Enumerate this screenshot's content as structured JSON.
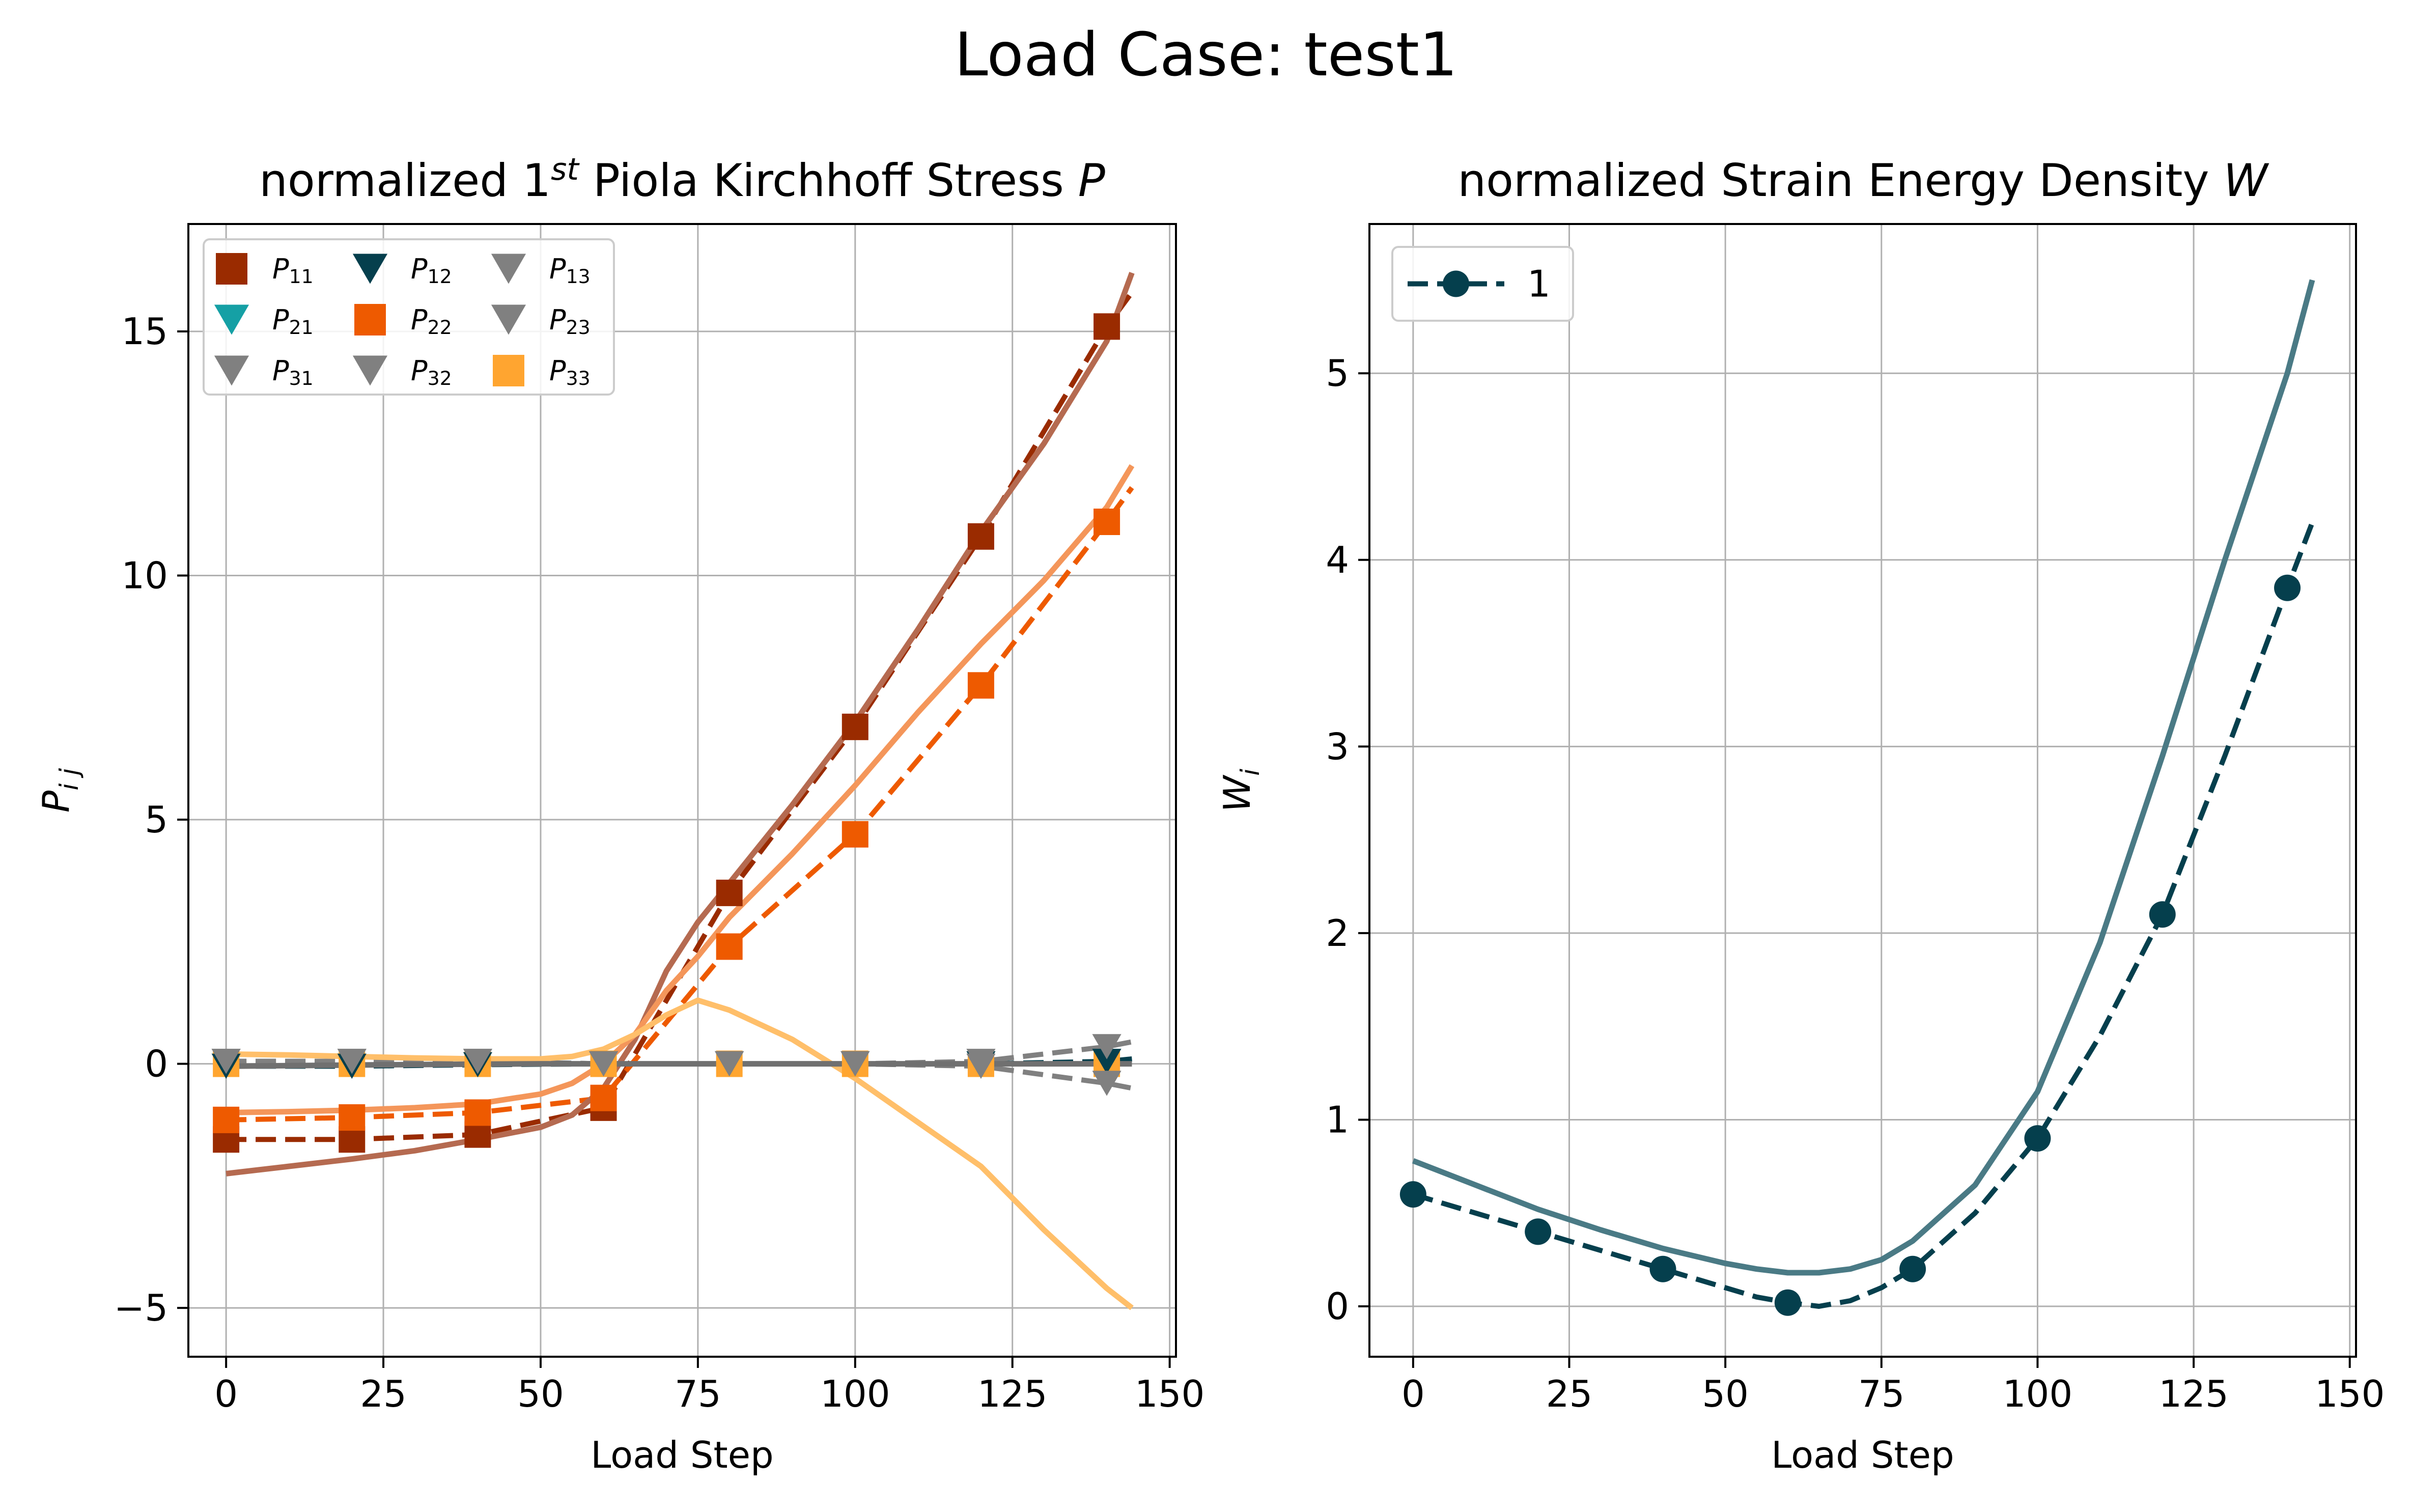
{
  "figure": {
    "suptitle": "Load Case: test1"
  },
  "chart_data": [
    {
      "type": "line",
      "title": "normalized 1st Piola Kirchhoff Stress P",
      "title_parts": {
        "pre": "normalized 1",
        "sup": "st",
        "mid": " Piola Kirchhoff Stress ",
        "ital": "P"
      },
      "xlabel": "Load Step",
      "ylabel": "P_ij",
      "ylabel_parts": {
        "base": "P",
        "sub": "i j"
      },
      "xlim": [
        -6,
        151
      ],
      "ylim": [
        -6.0,
        17.2
      ],
      "xticks": [
        0,
        25,
        50,
        75,
        100,
        125,
        150
      ],
      "yticks": [
        -5,
        0,
        5,
        10,
        15
      ],
      "xtick_labels": [
        "0",
        "25",
        "50",
        "75",
        "100",
        "125",
        "150"
      ],
      "ytick_labels": [
        "−5",
        "0",
        "5",
        "10",
        "15"
      ],
      "grid": true,
      "legend": {
        "placement": "top-left",
        "columns": 3,
        "entries": [
          {
            "base": "P",
            "sub": "11",
            "marker": "square",
            "color": "#9a2b00"
          },
          {
            "base": "P",
            "sub": "12",
            "marker": "triangle-down",
            "color": "#053f4d"
          },
          {
            "base": "P",
            "sub": "13",
            "marker": "triangle-down",
            "color": "#808080"
          },
          {
            "base": "P",
            "sub": "21",
            "marker": "triangle-down",
            "color": "#15a0a5"
          },
          {
            "base": "P",
            "sub": "22",
            "marker": "square",
            "color": "#ee5a00"
          },
          {
            "base": "P",
            "sub": "23",
            "marker": "triangle-down",
            "color": "#808080"
          },
          {
            "base": "P",
            "sub": "31",
            "marker": "triangle-down",
            "color": "#808080"
          },
          {
            "base": "P",
            "sub": "32",
            "marker": "triangle-down",
            "color": "#808080"
          },
          {
            "base": "P",
            "sub": "33",
            "marker": "square",
            "color": "#ffa530"
          }
        ]
      },
      "series": [
        {
          "component": "P11",
          "kind": "data",
          "style": "dashed",
          "marker": "square",
          "color": "#9a2b00",
          "x": [
            0,
            20,
            40,
            60,
            80,
            100,
            120,
            140,
            144
          ],
          "y": [
            -1.55,
            -1.55,
            -1.45,
            -0.9,
            3.5,
            6.9,
            10.8,
            15.1,
            15.8
          ],
          "marker_x": [
            0,
            20,
            40,
            60,
            80,
            100,
            120,
            140
          ],
          "marker_y": [
            -1.55,
            -1.55,
            -1.45,
            -0.9,
            3.5,
            6.9,
            10.8,
            15.1
          ]
        },
        {
          "component": "P22",
          "kind": "data",
          "style": "dashed",
          "marker": "square",
          "color": "#ee5a00",
          "x": [
            0,
            20,
            40,
            60,
            80,
            100,
            120,
            140,
            144
          ],
          "y": [
            -1.15,
            -1.1,
            -1.0,
            -0.7,
            2.4,
            4.7,
            7.75,
            11.1,
            11.8
          ],
          "marker_x": [
            0,
            20,
            40,
            60,
            80,
            100,
            120,
            140
          ],
          "marker_y": [
            -1.15,
            -1.1,
            -1.0,
            -0.7,
            2.4,
            4.7,
            7.75,
            11.1
          ]
        },
        {
          "component": "P33",
          "kind": "data",
          "style": "dashed",
          "marker": "square",
          "color": "#ffa530",
          "x": [
            0,
            20,
            40,
            60,
            80,
            100,
            120,
            140,
            144
          ],
          "y": [
            0.0,
            0.0,
            0.0,
            0.0,
            0.0,
            0.0,
            0.0,
            0.0,
            0.0
          ],
          "marker_x": [
            0,
            20,
            40,
            60,
            80,
            100,
            120,
            140
          ],
          "marker_y": [
            0.0,
            0.0,
            0.0,
            0.0,
            0.0,
            0.0,
            0.0,
            0.0
          ]
        },
        {
          "component": "P12",
          "kind": "data",
          "style": "dashed",
          "marker": "triangle-down",
          "color": "#053f4d",
          "x": [
            0,
            20,
            40,
            60,
            80,
            100,
            120,
            140,
            144
          ],
          "y": [
            -0.05,
            -0.05,
            -0.02,
            0.0,
            0.0,
            0.0,
            0.0,
            0.05,
            0.1
          ],
          "marker_x": [
            0,
            20,
            40,
            60,
            80,
            100,
            120,
            140
          ],
          "marker_y": [
            -0.05,
            -0.05,
            -0.02,
            0.0,
            0.0,
            0.0,
            0.0,
            0.05
          ]
        },
        {
          "component": "P13",
          "kind": "data",
          "style": "dashed",
          "marker": "triangle-down",
          "color": "#808080",
          "x": [
            0,
            20,
            40,
            60,
            80,
            100,
            120,
            140,
            144
          ],
          "y": [
            0.05,
            0.05,
            0.05,
            0.0,
            0.0,
            0.0,
            0.05,
            0.35,
            0.45
          ],
          "marker_x": [
            0,
            20,
            40,
            60,
            80,
            100,
            120,
            140
          ],
          "marker_y": [
            0.05,
            0.05,
            0.05,
            0.0,
            0.0,
            0.0,
            0.05,
            0.35
          ]
        },
        {
          "component": "P31",
          "kind": "data",
          "style": "dashed",
          "marker": "triangle-down",
          "color": "#808080",
          "x": [
            0,
            20,
            40,
            60,
            80,
            100,
            120,
            140,
            144
          ],
          "y": [
            0.05,
            0.05,
            0.05,
            0.0,
            0.0,
            0.0,
            -0.05,
            -0.4,
            -0.5
          ],
          "marker_x": [
            0,
            20,
            40,
            60,
            80,
            100,
            120,
            140
          ],
          "marker_y": [
            0.05,
            0.05,
            0.05,
            0.0,
            0.0,
            0.0,
            -0.05,
            -0.4
          ]
        },
        {
          "component": "P11",
          "kind": "model",
          "style": "solid",
          "color": "#b56a50",
          "x": [
            0,
            10,
            20,
            30,
            40,
            50,
            55,
            60,
            65,
            70,
            75,
            80,
            90,
            100,
            110,
            120,
            130,
            140,
            144
          ],
          "y": [
            -2.25,
            -2.1,
            -1.95,
            -1.78,
            -1.55,
            -1.3,
            -1.05,
            -0.5,
            0.5,
            1.9,
            2.9,
            3.7,
            5.3,
            7.0,
            8.9,
            10.9,
            12.7,
            14.8,
            16.2
          ]
        },
        {
          "component": "P22",
          "kind": "model",
          "style": "solid",
          "color": "#f4965a",
          "x": [
            0,
            10,
            20,
            30,
            40,
            50,
            55,
            60,
            65,
            70,
            75,
            80,
            90,
            100,
            110,
            120,
            130,
            140,
            144
          ],
          "y": [
            -1.0,
            -0.98,
            -0.95,
            -0.9,
            -0.82,
            -0.62,
            -0.4,
            0.0,
            0.6,
            1.5,
            2.2,
            3.0,
            4.3,
            5.7,
            7.2,
            8.6,
            9.9,
            11.4,
            12.25
          ]
        },
        {
          "component": "P33",
          "kind": "model",
          "style": "solid",
          "color": "#ffbf6a",
          "x": [
            0,
            10,
            20,
            30,
            40,
            50,
            55,
            60,
            65,
            70,
            75,
            80,
            90,
            100,
            110,
            120,
            130,
            140,
            144
          ],
          "y": [
            0.2,
            0.18,
            0.15,
            0.12,
            0.1,
            0.1,
            0.15,
            0.3,
            0.6,
            1.0,
            1.3,
            1.1,
            0.5,
            -0.3,
            -1.2,
            -2.1,
            -3.4,
            -4.6,
            -5.0
          ]
        },
        {
          "component": "P12",
          "kind": "model",
          "style": "solid",
          "color": "#707070",
          "x": [
            0,
            25,
            50,
            75,
            100,
            125,
            144
          ],
          "y": [
            -0.05,
            -0.02,
            0.0,
            0.0,
            0.0,
            0.0,
            0.0
          ]
        }
      ]
    },
    {
      "type": "line",
      "title": "normalized Strain Energy Density W",
      "title_parts": {
        "pre": "normalized Strain Energy Density ",
        "ital": "W"
      },
      "xlabel": "Load Step",
      "ylabel": "W_i",
      "ylabel_parts": {
        "base": "W",
        "sub": "i"
      },
      "xlim": [
        -7,
        151
      ],
      "ylim": [
        -0.27,
        5.8
      ],
      "xticks": [
        0,
        25,
        50,
        75,
        100,
        125,
        150
      ],
      "yticks": [
        0,
        1,
        2,
        3,
        4,
        5
      ],
      "xtick_labels": [
        "0",
        "25",
        "50",
        "75",
        "100",
        "125",
        "150"
      ],
      "ytick_labels": [
        "0",
        "1",
        "2",
        "3",
        "4",
        "5"
      ],
      "grid": true,
      "legend": {
        "placement": "top-left",
        "entries": [
          {
            "label": "1",
            "marker": "circle",
            "style": "dashed",
            "color": "#053f4d"
          }
        ]
      },
      "series": [
        {
          "name": "1",
          "kind": "data",
          "style": "dashed",
          "marker": "circle",
          "color": "#053f4d",
          "x": [
            0,
            10,
            20,
            30,
            40,
            50,
            55,
            60,
            65,
            70,
            75,
            80,
            90,
            100,
            110,
            120,
            130,
            140,
            144
          ],
          "y": [
            0.6,
            0.5,
            0.4,
            0.3,
            0.2,
            0.1,
            0.05,
            0.02,
            0.0,
            0.03,
            0.1,
            0.2,
            0.5,
            0.9,
            1.45,
            2.1,
            2.95,
            3.85,
            4.2
          ],
          "marker_x": [
            0,
            20,
            40,
            60,
            80,
            100,
            120,
            140
          ],
          "marker_y": [
            0.6,
            0.4,
            0.2,
            0.02,
            0.2,
            0.9,
            2.1,
            3.85
          ]
        },
        {
          "kind": "model",
          "style": "solid",
          "color": "#4a7a85",
          "x": [
            0,
            10,
            20,
            30,
            40,
            50,
            55,
            60,
            65,
            70,
            75,
            80,
            90,
            100,
            110,
            120,
            130,
            140,
            144
          ],
          "y": [
            0.78,
            0.65,
            0.52,
            0.41,
            0.31,
            0.23,
            0.2,
            0.18,
            0.18,
            0.2,
            0.25,
            0.35,
            0.65,
            1.15,
            1.95,
            2.95,
            4.0,
            5.0,
            5.5
          ]
        }
      ]
    }
  ]
}
